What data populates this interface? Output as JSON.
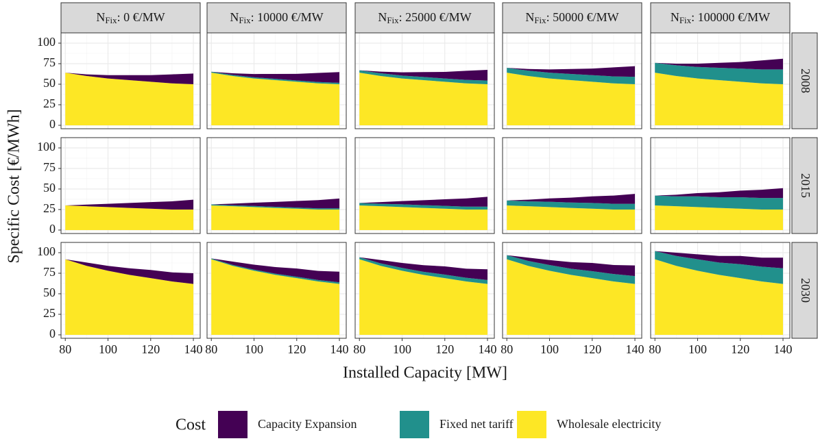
{
  "chart_data": {
    "type": "area",
    "y_label": "Specific Cost [€/MWh]",
    "x_label": "Installed Capacity [MW]",
    "legend_title": "Cost",
    "series": [
      {
        "name": "Capacity Expansion",
        "color": "#440154"
      },
      {
        "name": "Fixed net tariff",
        "color": "#21908C"
      },
      {
        "name": "Wholesale electricity",
        "color": "#FDE725"
      }
    ],
    "columns": [
      {
        "symbol": "N",
        "subscript": "Fix",
        "label": ": 0 €/MW"
      },
      {
        "symbol": "N",
        "subscript": "Fix",
        "label": ": 10000 €/MW"
      },
      {
        "symbol": "N",
        "subscript": "Fix",
        "label": ": 25000 €/MW"
      },
      {
        "symbol": "N",
        "subscript": "Fix",
        "label": ": 50000 €/MW"
      },
      {
        "symbol": "N",
        "subscript": "Fix",
        "label": ": 100000 €/MW"
      }
    ],
    "rows": [
      "2008",
      "2015",
      "2030"
    ],
    "x": [
      80,
      90,
      100,
      110,
      120,
      130,
      140
    ],
    "xlim": [
      78,
      143.2
    ],
    "xticks": [
      80,
      100,
      120,
      140
    ],
    "ylim": [
      -4.2,
      112.5
    ],
    "yticks": [
      0,
      25,
      50,
      75,
      100
    ],
    "grid": true,
    "panels": [
      {
        "series": [
          {
            "values": [
              0,
              2,
              4,
              6,
              8,
              11,
              13
            ]
          },
          {
            "values": [
              0,
              0,
              0,
              0,
              0,
              0,
              0
            ]
          },
          {
            "values": [
              64,
              60,
              57,
              55,
              53,
              51,
              50
            ]
          }
        ]
      },
      {
        "series": [
          {
            "values": [
              0,
              2,
              4,
              6,
              8,
              11,
              13
            ]
          },
          {
            "values": [
              1.2,
              1.3,
              1.4,
              1.5,
              1.6,
              1.7,
              1.8
            ]
          },
          {
            "values": [
              64,
              60,
              57,
              55,
              53,
              51,
              50
            ]
          }
        ]
      },
      {
        "series": [
          {
            "values": [
              0,
              2,
              4,
              6,
              8,
              11,
              13
            ]
          },
          {
            "values": [
              3,
              3.3,
              3.5,
              3.8,
              4,
              4.3,
              4.5
            ]
          },
          {
            "values": [
              64,
              60,
              57,
              55,
              53,
              51,
              50
            ]
          }
        ]
      },
      {
        "series": [
          {
            "values": [
              0,
              2,
              4,
              6,
              8,
              11,
              13
            ]
          },
          {
            "values": [
              6,
              6.5,
              7,
              7.5,
              8,
              8.5,
              9
            ]
          },
          {
            "values": [
              64,
              60,
              57,
              55,
              53,
              51,
              50
            ]
          }
        ]
      },
      {
        "series": [
          {
            "values": [
              0,
              2,
              4,
              6,
              8,
              11,
              13
            ]
          },
          {
            "values": [
              12,
              13,
              14,
              15,
              16,
              17,
              18
            ]
          },
          {
            "values": [
              64,
              60,
              57,
              55,
              53,
              51,
              50
            ]
          }
        ]
      },
      {
        "series": [
          {
            "values": [
              0,
              2,
              4,
              6,
              8,
              10,
              12
            ]
          },
          {
            "values": [
              0,
              0,
              0,
              0,
              0,
              0,
              0
            ]
          },
          {
            "values": [
              30,
              29,
              28,
              27,
              26,
              25,
              25
            ]
          }
        ]
      },
      {
        "series": [
          {
            "values": [
              0,
              2,
              4,
              6,
              8,
              10,
              12
            ]
          },
          {
            "values": [
              1.2,
              1.2,
              1.3,
              1.3,
              1.4,
              1.4,
              1.4
            ]
          },
          {
            "values": [
              30,
              29,
              28,
              27,
              26,
              25,
              25
            ]
          }
        ]
      },
      {
        "series": [
          {
            "values": [
              0,
              2,
              4,
              6,
              8,
              10,
              12
            ]
          },
          {
            "values": [
              3,
              3,
              3.3,
              3.3,
              3.5,
              3.5,
              3.5
            ]
          },
          {
            "values": [
              30,
              29,
              28,
              27,
              26,
              25,
              25
            ]
          }
        ]
      },
      {
        "series": [
          {
            "values": [
              0,
              2,
              4,
              6,
              8,
              10,
              12
            ]
          },
          {
            "values": [
              6,
              6,
              6.5,
              6.5,
              7,
              7,
              7
            ]
          },
          {
            "values": [
              30,
              29,
              28,
              27,
              26,
              25,
              25
            ]
          }
        ]
      },
      {
        "series": [
          {
            "values": [
              0,
              2,
              4,
              6,
              8,
              10,
              12
            ]
          },
          {
            "values": [
              12,
              12,
              13,
              13,
              14,
              14,
              14
            ]
          },
          {
            "values": [
              30,
              29,
              28,
              27,
              26,
              25,
              25
            ]
          }
        ]
      },
      {
        "series": [
          {
            "values": [
              0,
              4,
              6,
              8,
              10,
              11,
              13
            ]
          },
          {
            "values": [
              0,
              0,
              0,
              0,
              0,
              0,
              0
            ]
          },
          {
            "values": [
              92,
              84,
              78,
              73,
              69,
              65,
              62
            ]
          }
        ]
      },
      {
        "series": [
          {
            "values": [
              0,
              4,
              6,
              8,
              10,
              11,
              13
            ]
          },
          {
            "values": [
              1,
              1.2,
              1.4,
              1.5,
              1.7,
              1.8,
              1.9
            ]
          },
          {
            "values": [
              92,
              84,
              78,
              73,
              69,
              65,
              62
            ]
          }
        ]
      },
      {
        "series": [
          {
            "values": [
              0,
              4,
              6,
              8,
              10,
              11,
              13
            ]
          },
          {
            "values": [
              2.5,
              3,
              3.5,
              3.8,
              4.3,
              4.5,
              4.8
            ]
          },
          {
            "values": [
              92,
              84,
              78,
              73,
              69,
              65,
              62
            ]
          }
        ]
      },
      {
        "series": [
          {
            "values": [
              0,
              4,
              6,
              8,
              10,
              11,
              13
            ]
          },
          {
            "values": [
              5,
              6,
              7,
              7.5,
              8.5,
              9,
              9.5
            ]
          },
          {
            "values": [
              92,
              84,
              78,
              73,
              69,
              65,
              62
            ]
          }
        ]
      },
      {
        "series": [
          {
            "values": [
              0,
              4,
              6,
              8,
              10,
              11,
              13
            ]
          },
          {
            "values": [
              10,
              12,
              14,
              15,
              17,
              18,
              19
            ]
          },
          {
            "values": [
              92,
              84,
              78,
              73,
              69,
              65,
              62
            ]
          }
        ]
      }
    ]
  }
}
